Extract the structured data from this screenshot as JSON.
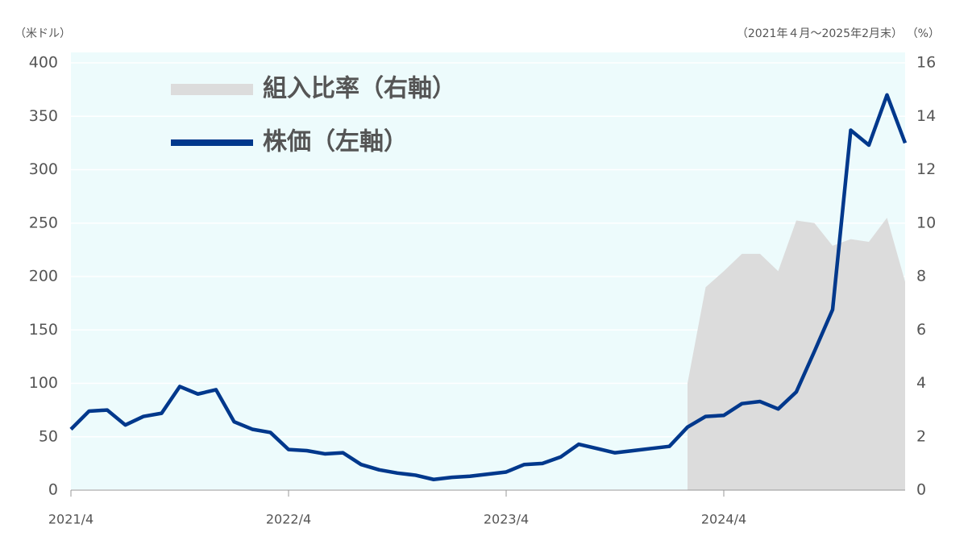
{
  "chart_data": {
    "type": "line",
    "y_unit_label": "（米ドル）",
    "period_label": "（2021年４月～2025年2月末）",
    "y2_unit_label": "（%）",
    "categories": [
      "2021/4",
      null,
      null,
      null,
      null,
      null,
      null,
      null,
      null,
      null,
      null,
      null,
      "2022/4",
      null,
      null,
      null,
      null,
      null,
      null,
      null,
      null,
      null,
      null,
      null,
      "2023/4",
      null,
      null,
      null,
      null,
      null,
      null,
      null,
      null,
      null,
      null,
      null,
      "2024/4",
      null,
      null,
      null,
      null,
      null,
      null,
      null,
      null,
      null,
      null
    ],
    "series": [
      {
        "name": "組入比率（右軸）",
        "color": "#dcdcdc",
        "kind": "area",
        "axis": "y2",
        "values": [
          null,
          null,
          null,
          null,
          null,
          null,
          null,
          null,
          null,
          null,
          null,
          null,
          null,
          null,
          null,
          null,
          null,
          null,
          null,
          null,
          null,
          null,
          null,
          null,
          null,
          null,
          null,
          null,
          null,
          null,
          null,
          null,
          null,
          null,
          4.0,
          7.6,
          8.2,
          8.85,
          8.85,
          8.2,
          10.1,
          10.0,
          9.15,
          9.4,
          9.3,
          10.2,
          7.8
        ]
      },
      {
        "name": "株価（左軸）",
        "color": "#00388c",
        "kind": "line",
        "values": [
          57,
          74,
          75,
          61,
          69,
          72,
          97,
          90,
          94,
          64,
          57,
          54,
          38,
          37,
          34,
          35,
          24,
          19,
          16,
          14,
          10,
          12,
          13,
          15,
          17,
          24,
          25,
          31,
          43,
          39,
          35,
          37,
          39,
          41,
          59,
          69,
          70,
          81,
          83,
          76,
          92,
          130,
          169,
          337,
          323,
          370,
          325
        ]
      }
    ],
    "ylim": [
      0,
      400
    ],
    "yticks": [
      0,
      50,
      100,
      150,
      200,
      250,
      300,
      350,
      400
    ],
    "y2lim": [
      0,
      16
    ],
    "y2ticks": [
      0,
      2,
      4,
      6,
      8,
      10,
      12,
      14,
      16
    ],
    "grid": true,
    "background": "#edfbfc"
  }
}
